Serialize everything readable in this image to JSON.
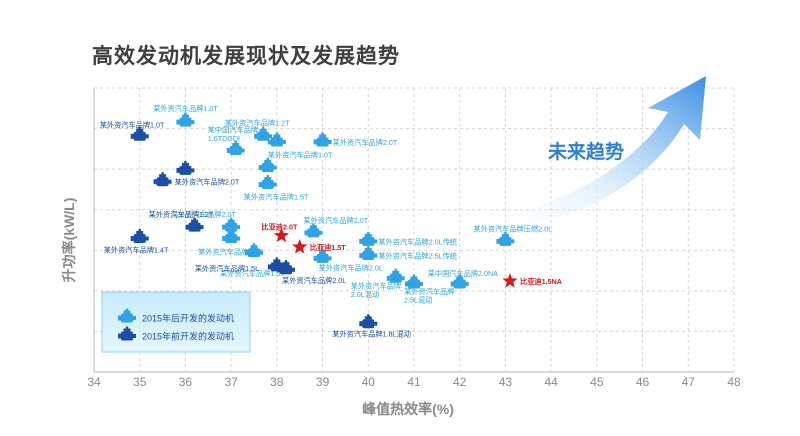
{
  "title": "高效发动机发展现状及发展趋势",
  "colors": {
    "new": "#2ea3e6",
    "old": "#1b4fa3",
    "byd": "#d7191e",
    "arrow": "#2f7fd4",
    "grid": "#d4d4d4"
  },
  "chart_data": {
    "type": "scatter",
    "xlabel": "峰值热效率(%)",
    "ylabel": "升功率(kW/L)",
    "xlim": [
      34,
      48
    ],
    "xticks": [
      "34",
      "35",
      "36",
      "37",
      "38",
      "39",
      "40",
      "41",
      "42",
      "43",
      "44",
      "45",
      "46",
      "47",
      "48"
    ],
    "y_tick_labels_shown": false,
    "grid": true,
    "trend_label": "未来趋势",
    "legend": {
      "placement": "bottom-left",
      "entries": [
        {
          "name": "2015年后开发的发动机",
          "group": "new"
        },
        {
          "name": "2015年前开发的发动机",
          "group": "old"
        }
      ]
    },
    "series": [
      {
        "name": "2015年后开发的发动机",
        "group": "new",
        "points": [
          {
            "x": 36.0,
            "y": 88,
            "label": "某外资汽车品牌1.0T"
          },
          {
            "x": 37.1,
            "y": 78,
            "label": "某中国汽车品牌\n1.6TDGDI"
          },
          {
            "x": 37.7,
            "y": 83,
            "label": "某外资汽车品牌1.2T"
          },
          {
            "x": 38.0,
            "y": 81,
            "label": ""
          },
          {
            "x": 39.0,
            "y": 81,
            "label": "某外资汽车品牌2.0T"
          },
          {
            "x": 37.8,
            "y": 72,
            "label": "某外资汽车品牌1.0T"
          },
          {
            "x": 37.8,
            "y": 66,
            "label": "某外资汽车品牌1.5T"
          },
          {
            "x": 37.0,
            "y": 51,
            "label": "某外资汽车品牌2.0T"
          },
          {
            "x": 37.0,
            "y": 47,
            "label": ""
          },
          {
            "x": 38.8,
            "y": 49,
            "label": "某外资汽车品牌2.0T"
          },
          {
            "x": 37.5,
            "y": 42,
            "label": "某外资汽车品牌2.0T"
          },
          {
            "x": 38.2,
            "y": 36,
            "label": "某外资汽车品牌1.5T"
          },
          {
            "x": 40.0,
            "y": 46,
            "label": "某外资汽车品牌2.0L传统"
          },
          {
            "x": 40.0,
            "y": 41,
            "label": "某外资汽车品牌2.5L传统"
          },
          {
            "x": 39.0,
            "y": 40,
            "label": "某外资汽车品牌2.0L"
          },
          {
            "x": 40.6,
            "y": 33,
            "label": "某外资汽车品牌\n2.0L混动"
          },
          {
            "x": 41.0,
            "y": 31,
            "label": "某外资汽车品牌\n2.5L混动"
          },
          {
            "x": 42.0,
            "y": 31,
            "label": "某中国汽车品牌2.0NA"
          },
          {
            "x": 43.0,
            "y": 46,
            "label": "某外资汽车品牌压燃2.0L"
          }
        ]
      },
      {
        "name": "2015年前开发的发动机",
        "group": "old",
        "points": [
          {
            "x": 35.0,
            "y": 83,
            "label": "某外资汽车品牌1.0T"
          },
          {
            "x": 36.0,
            "y": 71,
            "label": ""
          },
          {
            "x": 35.5,
            "y": 67,
            "label": "某外资汽车品牌2.0T"
          },
          {
            "x": 36.2,
            "y": 51,
            "label": "某外资汽车品牌1.2T"
          },
          {
            "x": 35.0,
            "y": 47,
            "label": "某外资汽车品牌1.4T"
          },
          {
            "x": 38.0,
            "y": 37,
            "label": "某外资汽车品牌1.5L"
          },
          {
            "x": 38.2,
            "y": 36,
            "label": "某外资汽车品牌2.0L"
          },
          {
            "x": 40.0,
            "y": 17,
            "label": "某外资汽车品牌1.8L混动"
          }
        ]
      },
      {
        "name": "比亚迪",
        "group": "byd",
        "points": [
          {
            "x": 38.1,
            "y": 48,
            "label": "比亚迪2.0T"
          },
          {
            "x": 38.5,
            "y": 44,
            "label": "比亚迪1.5T"
          },
          {
            "x": 43.1,
            "y": 32,
            "label": "比亚迪1.5NA"
          }
        ]
      }
    ]
  }
}
